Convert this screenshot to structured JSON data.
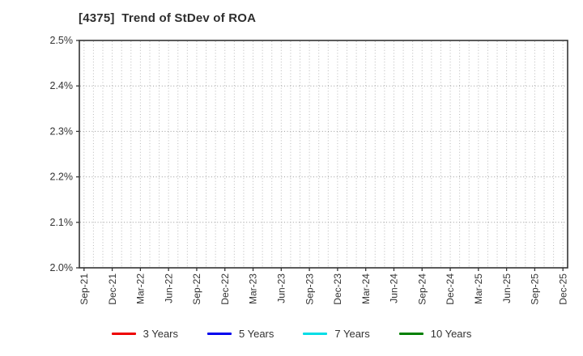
{
  "header": {
    "title": "[4375]  Trend of StDev of ROA"
  },
  "chart_data": {
    "type": "line",
    "title": "[4375]  Trend of StDev of ROA",
    "xlabel": "",
    "ylabel": "",
    "x_tick_labels": [
      "Sep-21",
      "Dec-21",
      "Mar-22",
      "Jun-22",
      "Sep-22",
      "Dec-22",
      "Mar-23",
      "Jun-23",
      "Sep-23",
      "Dec-23",
      "Mar-24",
      "Jun-24",
      "Sep-24",
      "Dec-24",
      "Mar-25",
      "Jun-25",
      "Sep-25",
      "Dec-25"
    ],
    "x_months_total": 52,
    "x_label_every_months": 3,
    "y_tick_labels": [
      "2.0%",
      "2.1%",
      "2.2%",
      "2.3%",
      "2.4%",
      "2.5%"
    ],
    "y_tick_values": [
      2.0,
      2.1,
      2.2,
      2.3,
      2.4,
      2.5
    ],
    "ylim": [
      2.0,
      2.5
    ],
    "y_unit": "%",
    "grid": "dotted",
    "legend_position": "bottom",
    "series": [
      {
        "name": "3 Years",
        "color": "#ee0000",
        "values": []
      },
      {
        "name": "5 Years",
        "color": "#0000ee",
        "values": []
      },
      {
        "name": "7 Years",
        "color": "#00dde6",
        "values": []
      },
      {
        "name": "10 Years",
        "color": "#008000",
        "values": []
      }
    ],
    "note": "plot area is empty - no series data points visible within the 2.0%-2.5% axis range"
  },
  "colors": {
    "background": "#ffffff",
    "frame": "#333333",
    "grid_vertical": "#b8b8b8",
    "grid_horizontal": "#9a9a9a",
    "tick": "#333333",
    "label_text": "#333333"
  }
}
